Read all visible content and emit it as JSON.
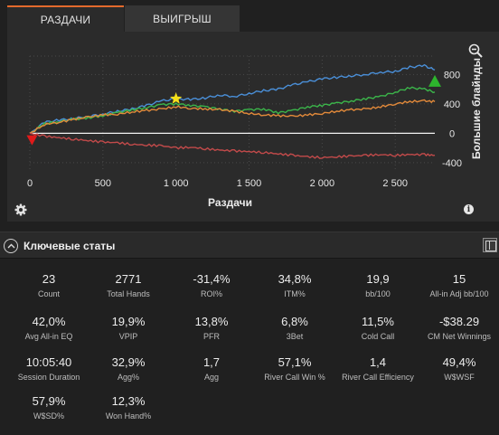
{
  "tabs": [
    {
      "label": "РАЗДАЧИ",
      "active": true
    },
    {
      "label": "ВЫИГРЫШ",
      "active": false
    }
  ],
  "chart_data": {
    "type": "line",
    "xlabel": "Раздачи",
    "ylabel": "Большие блайнды",
    "xlim": [
      0,
      2771
    ],
    "ylim": [
      -500,
      1050
    ],
    "x_ticks": [
      0,
      500,
      1000,
      1500,
      2000,
      2500
    ],
    "x_tick_labels": [
      "0",
      "500",
      "1 000",
      "1 500",
      "2 000",
      "2 500"
    ],
    "y_ticks": [
      800,
      400,
      0,
      -400
    ],
    "y_tick_labels": [
      "800",
      "400",
      "0",
      "-400"
    ],
    "zero_line": true,
    "grid": "dotted",
    "series": [
      {
        "color": "#4a8fd8",
        "x": [
          0,
          100,
          200,
          300,
          400,
          500,
          600,
          700,
          800,
          900,
          1000,
          1100,
          1200,
          1300,
          1400,
          1500,
          1600,
          1700,
          1800,
          1900,
          2000,
          2100,
          2200,
          2300,
          2400,
          2500,
          2600,
          2700,
          2771
        ],
        "y": [
          0,
          150,
          180,
          200,
          230,
          260,
          300,
          330,
          380,
          440,
          470,
          460,
          480,
          520,
          500,
          540,
          580,
          600,
          660,
          700,
          740,
          760,
          780,
          800,
          830,
          840,
          900,
          920,
          860
        ]
      },
      {
        "color": "#3bb54a",
        "x": [
          0,
          100,
          200,
          300,
          400,
          500,
          600,
          700,
          800,
          900,
          1000,
          1100,
          1200,
          1300,
          1400,
          1500,
          1600,
          1700,
          1800,
          1900,
          2000,
          2100,
          2200,
          2300,
          2400,
          2500,
          2600,
          2700,
          2771
        ],
        "y": [
          0,
          130,
          160,
          190,
          210,
          240,
          280,
          320,
          350,
          390,
          400,
          380,
          360,
          330,
          300,
          320,
          330,
          280,
          310,
          360,
          380,
          410,
          440,
          470,
          500,
          560,
          620,
          600,
          560
        ]
      },
      {
        "color": "#e38a3a",
        "x": [
          0,
          100,
          200,
          300,
          400,
          500,
          600,
          700,
          800,
          900,
          1000,
          1100,
          1200,
          1300,
          1400,
          1500,
          1600,
          1700,
          1800,
          1900,
          2000,
          2100,
          2200,
          2300,
          2400,
          2500,
          2600,
          2700,
          2771
        ],
        "y": [
          0,
          120,
          150,
          190,
          220,
          250,
          260,
          290,
          310,
          330,
          360,
          340,
          330,
          320,
          300,
          270,
          250,
          240,
          230,
          250,
          270,
          300,
          320,
          330,
          360,
          400,
          430,
          440,
          430
        ]
      },
      {
        "color": "#c24a4a",
        "x": [
          0,
          100,
          200,
          300,
          400,
          500,
          600,
          700,
          800,
          900,
          1000,
          1100,
          1200,
          1300,
          1400,
          1500,
          1600,
          1700,
          1800,
          1900,
          2000,
          2100,
          2200,
          2300,
          2400,
          2500,
          2600,
          2700,
          2771
        ],
        "y": [
          0,
          -40,
          -60,
          -80,
          -100,
          -120,
          -130,
          -150,
          -160,
          -170,
          -200,
          -190,
          -210,
          -230,
          -240,
          -250,
          -260,
          -280,
          -300,
          -320,
          -330,
          -320,
          -310,
          -300,
          -290,
          -300,
          -290,
          -290,
          -300
        ]
      }
    ],
    "markers": [
      {
        "shape": "star",
        "color": "#f4e01a",
        "x": 1000,
        "y": 470
      },
      {
        "shape": "triangle-up",
        "color": "#2db52d",
        "x": 2771,
        "y": 720
      },
      {
        "shape": "triangle-down",
        "color": "#e01a1a",
        "x": 15,
        "y": -90
      }
    ]
  },
  "icons": {
    "zoom": "zoom-out-icon",
    "settings": "gear-icon",
    "info": "info-icon",
    "collapse": "chevron-up-icon",
    "layout": "panel-layout-icon"
  },
  "info_glyph": "i",
  "stats_title": "Ключевые статы",
  "stats": [
    {
      "value": "23",
      "label": "Count"
    },
    {
      "value": "2771",
      "label": "Total Hands"
    },
    {
      "value": "-31,4%",
      "label": "ROI%"
    },
    {
      "value": "34,8%",
      "label": "ITM%"
    },
    {
      "value": "19,9",
      "label": "bb/100"
    },
    {
      "value": "15",
      "label": "All-in Adj bb/100"
    },
    {
      "value": "42,0%",
      "label": "Avg All-in EQ"
    },
    {
      "value": "19,9%",
      "label": "VPIP"
    },
    {
      "value": "13,8%",
      "label": "PFR"
    },
    {
      "value": "6,8%",
      "label": "3Bet"
    },
    {
      "value": "11,5%",
      "label": "Cold Call"
    },
    {
      "value": "-$38.29",
      "label": "CM Net Winnings"
    },
    {
      "value": "10:05:40",
      "label": "Session Duration"
    },
    {
      "value": "32,9%",
      "label": "Agg%"
    },
    {
      "value": "1,7",
      "label": "Agg"
    },
    {
      "value": "57,1%",
      "label": "River Call Win %"
    },
    {
      "value": "1,4",
      "label": "River Call Efficiency"
    },
    {
      "value": "49,4%",
      "label": "W$WSF"
    },
    {
      "value": "57,9%",
      "label": "W$SD%"
    },
    {
      "value": "12,3%",
      "label": "Won Hand%"
    }
  ]
}
